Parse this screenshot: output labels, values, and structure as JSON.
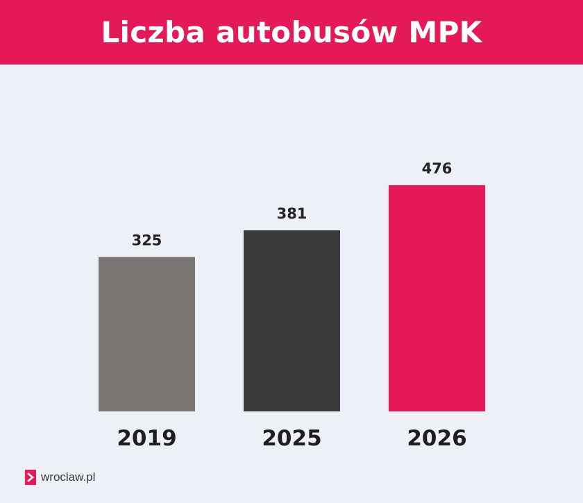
{
  "header": {
    "title": "Liczba autobusów MPK"
  },
  "colors": {
    "accent": "#e31a57",
    "background": "#edf0f7",
    "bar_2019": "#7a7674",
    "bar_2025": "#3a3a3a",
    "bar_2026": "#e31a57"
  },
  "chart_data": {
    "type": "bar",
    "title": "Liczba autobusów MPK",
    "categories": [
      "2019",
      "2025",
      "2026"
    ],
    "values": [
      325,
      381,
      476
    ],
    "bar_colors": [
      "#7a7674",
      "#3a3a3a",
      "#e31a57"
    ],
    "xlabel": "",
    "ylabel": "",
    "ylim": [
      0,
      500
    ],
    "grid": false,
    "legend": "none"
  },
  "footer": {
    "logo_icon": "chevron-right-icon",
    "site": "wroclaw.pl"
  }
}
